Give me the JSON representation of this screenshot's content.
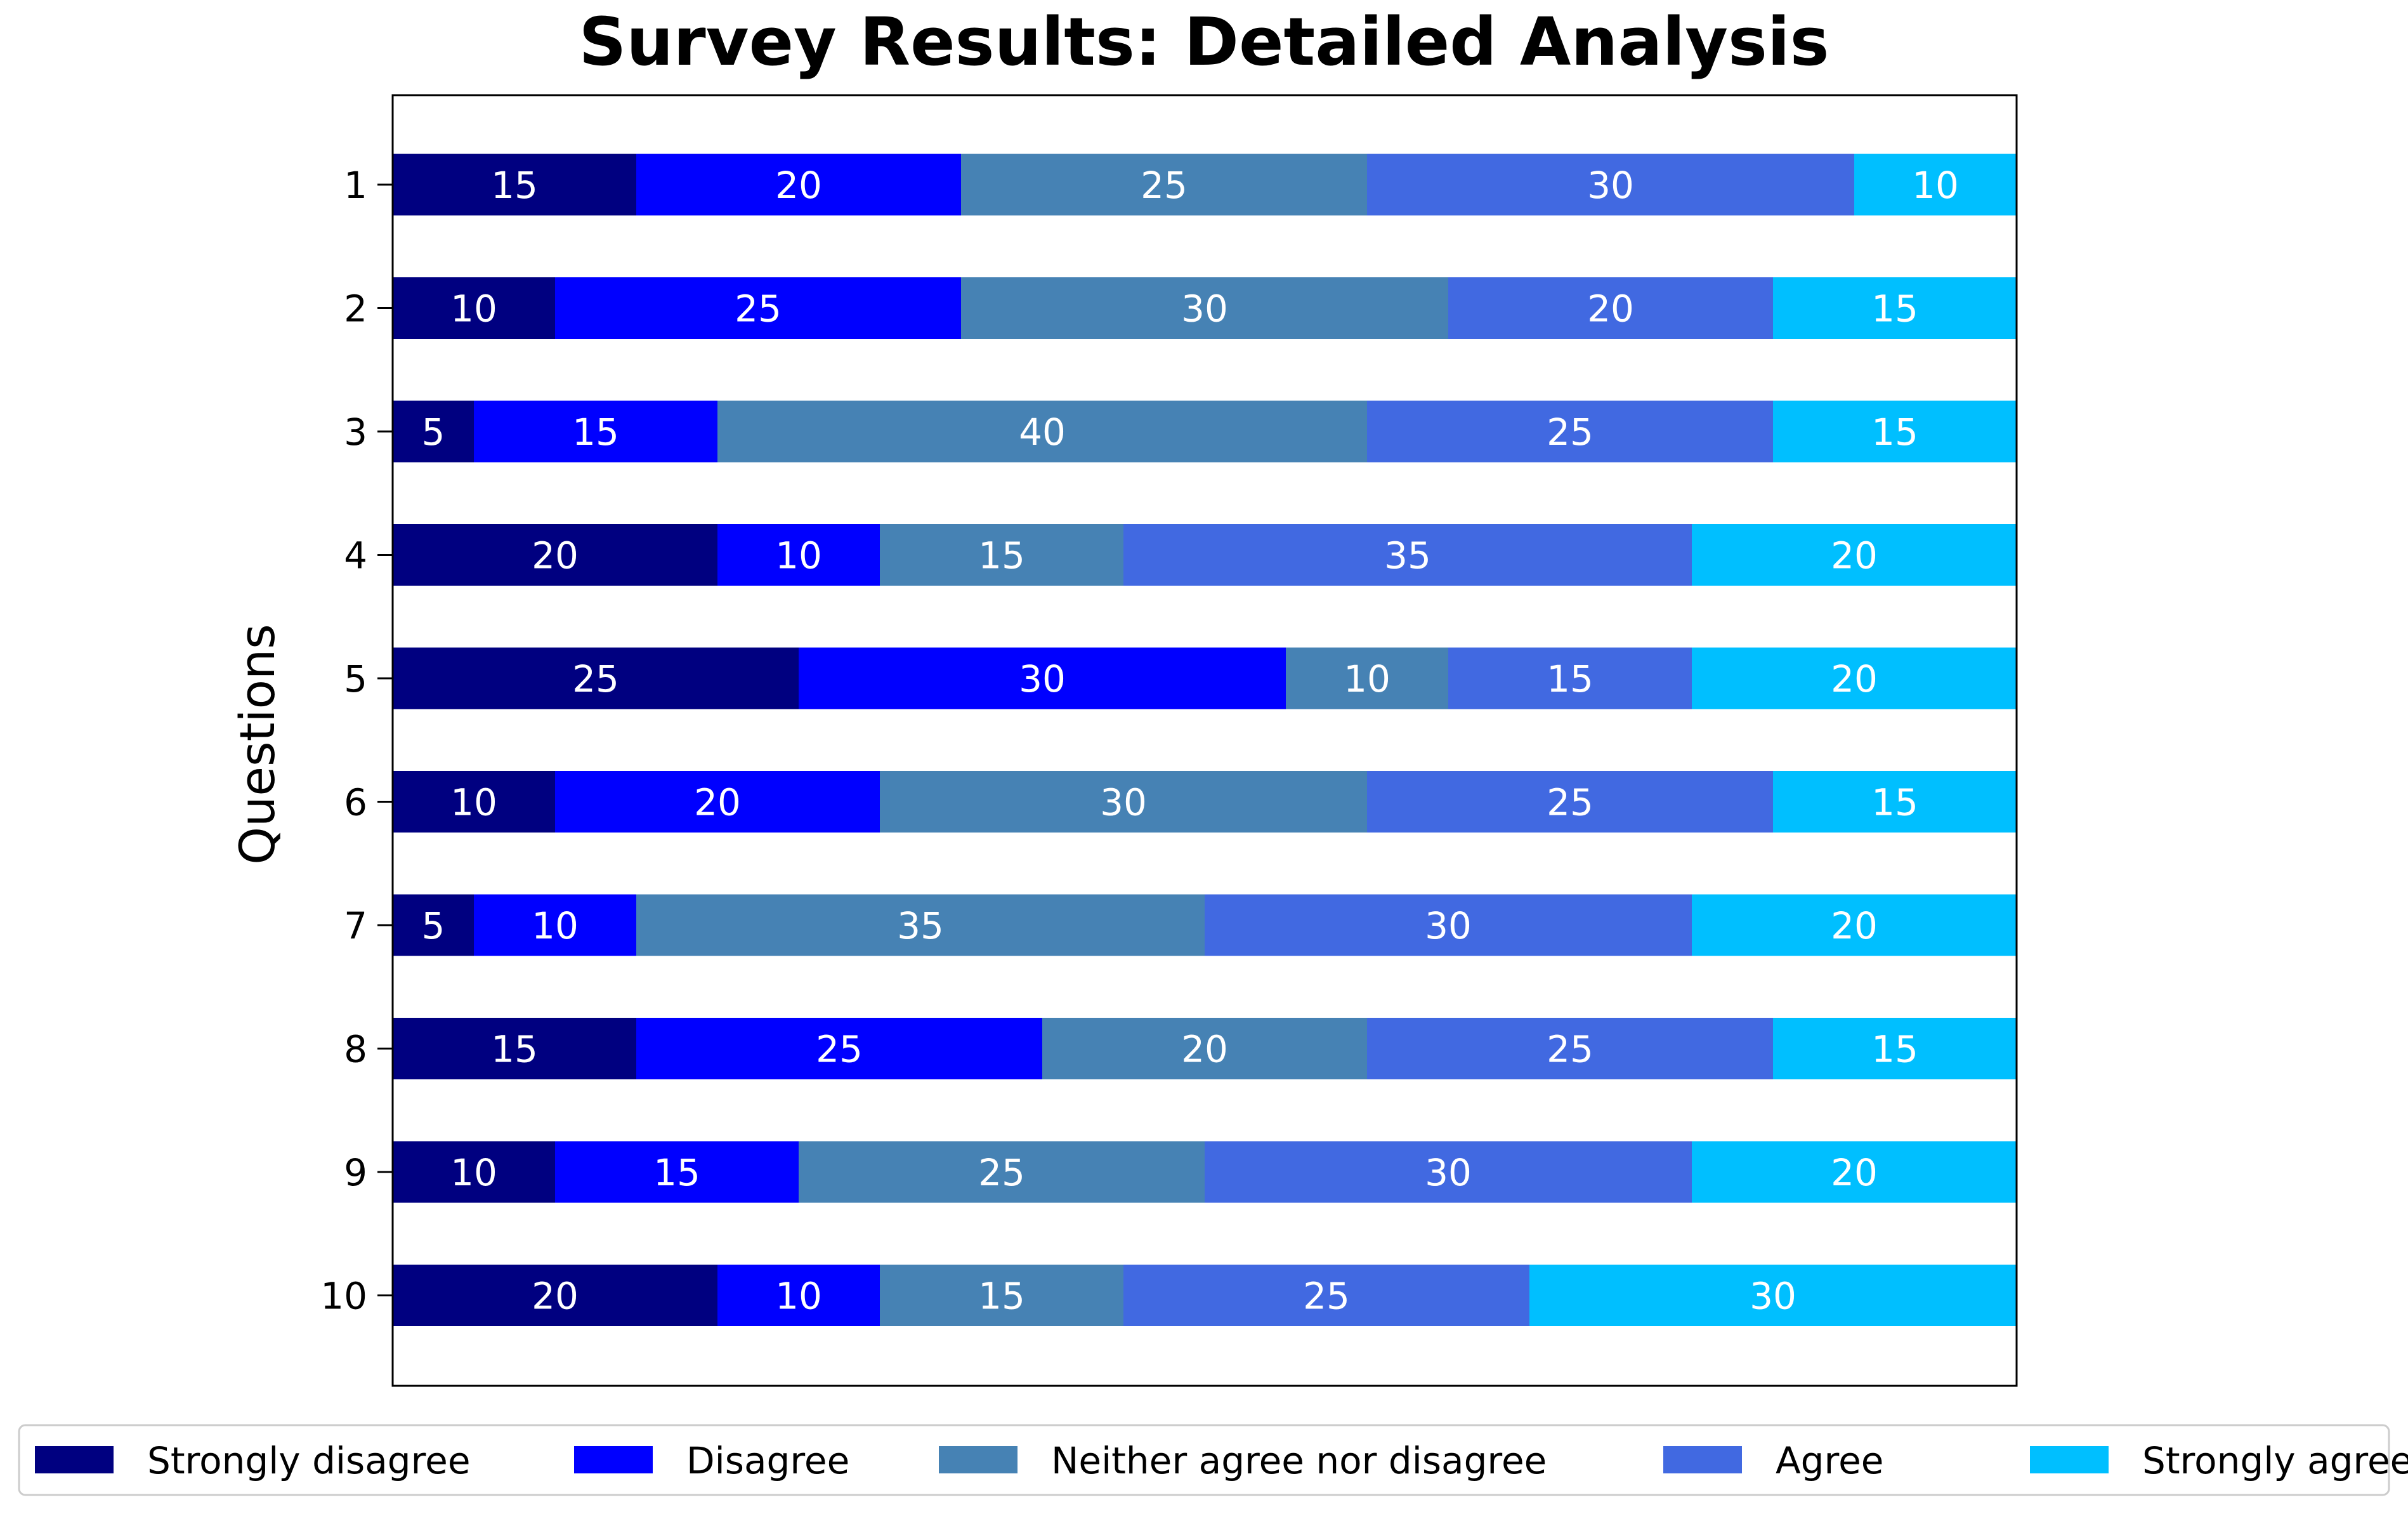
{
  "chart_data": {
    "type": "bar",
    "orientation": "horizontal",
    "stacked": true,
    "title": "Survey Results: Detailed Analysis",
    "xlabel": "",
    "ylabel": "Questions",
    "categories": [
      "1",
      "2",
      "3",
      "4",
      "5",
      "6",
      "7",
      "8",
      "9",
      "10"
    ],
    "xlim": [
      0,
      100
    ],
    "grid": false,
    "legend_position": "bottom",
    "series": [
      {
        "name": "Strongly disagree",
        "color": "#000080",
        "values": [
          15,
          10,
          5,
          20,
          25,
          10,
          5,
          15,
          10,
          20
        ]
      },
      {
        "name": "Disagree",
        "color": "#0000ff",
        "values": [
          20,
          25,
          15,
          10,
          30,
          20,
          10,
          25,
          15,
          10
        ]
      },
      {
        "name": "Neither agree nor disagree",
        "color": "#4682b4",
        "values": [
          25,
          30,
          40,
          15,
          10,
          30,
          35,
          20,
          25,
          15
        ]
      },
      {
        "name": "Agree",
        "color": "#4169e1",
        "values": [
          30,
          20,
          25,
          35,
          15,
          25,
          30,
          25,
          30,
          25
        ]
      },
      {
        "name": "Strongly agree",
        "color": "#00bfff",
        "values": [
          10,
          15,
          15,
          20,
          20,
          15,
          20,
          15,
          20,
          30
        ]
      }
    ]
  }
}
